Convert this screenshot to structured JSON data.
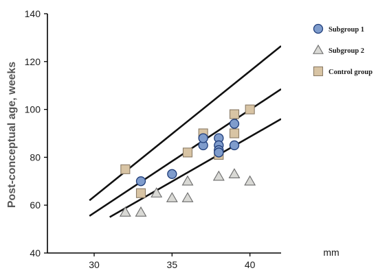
{
  "chart_data": {
    "type": "scatter",
    "title": "",
    "ylabel": "Post-conceptual age, weeks",
    "xlabel": "mm",
    "xlim": [
      27,
      42
    ],
    "ylim": [
      40,
      140
    ],
    "xticks": [
      30,
      35,
      40
    ],
    "yticks": [
      40,
      60,
      80,
      100,
      120,
      140
    ],
    "grid": false,
    "legend_position": "top-right",
    "colors": {
      "subgroup1_fill": "#7f9ccc",
      "subgroup1_stroke": "#1f3d7a",
      "subgroup2_fill": "#d9d9d5",
      "subgroup2_stroke": "#6b6b6b",
      "control_fill": "#d8c4a4",
      "control_stroke": "#8a7b66",
      "line": "#111111"
    },
    "series": [
      {
        "name": "Subgroup 1",
        "marker": "circle",
        "points": [
          [
            33,
            70
          ],
          [
            35,
            73
          ],
          [
            37,
            85
          ],
          [
            37,
            88
          ],
          [
            38,
            88
          ],
          [
            38,
            85
          ],
          [
            38,
            83
          ],
          [
            38,
            82
          ],
          [
            39,
            94
          ],
          [
            39,
            85
          ]
        ]
      },
      {
        "name": "Subgroup 2",
        "marker": "triangle",
        "points": [
          [
            32,
            57
          ],
          [
            33,
            57
          ],
          [
            34,
            65
          ],
          [
            35,
            63
          ],
          [
            36,
            63
          ],
          [
            36,
            70
          ],
          [
            38,
            72
          ],
          [
            39,
            73
          ],
          [
            40,
            70
          ]
        ]
      },
      {
        "name": "Control group",
        "marker": "square",
        "points": [
          [
            32,
            75
          ],
          [
            33,
            65
          ],
          [
            36,
            82
          ],
          [
            37,
            90
          ],
          [
            38,
            81
          ],
          [
            39,
            98
          ],
          [
            39,
            90
          ],
          [
            40,
            100
          ]
        ]
      }
    ],
    "lines": [
      {
        "x": [
          29.7,
          42
        ],
        "y": [
          62,
          126.5
        ]
      },
      {
        "x": [
          29.7,
          42
        ],
        "y": [
          55.5,
          108.5
        ]
      },
      {
        "x": [
          31,
          42
        ],
        "y": [
          55,
          96
        ]
      }
    ]
  }
}
